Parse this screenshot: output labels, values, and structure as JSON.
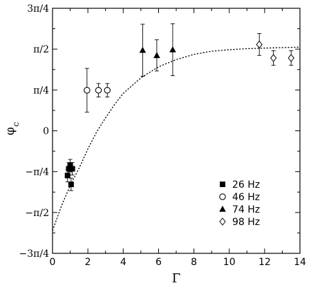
{
  "chart_data": {
    "type": "scatter",
    "xlabel": "Γ",
    "ylabel_main": "φ",
    "ylabel_sub": "c",
    "xlim": [
      0,
      14
    ],
    "ylim": [
      -2.35619,
      2.35619
    ],
    "x_ticks": [
      {
        "value": 0,
        "label": "0"
      },
      {
        "value": 2,
        "label": "2"
      },
      {
        "value": 4,
        "label": "4"
      },
      {
        "value": 6,
        "label": "6"
      },
      {
        "value": 8,
        "label": "8"
      },
      {
        "value": 10,
        "label": "10"
      },
      {
        "value": 12,
        "label": "12"
      },
      {
        "value": 14,
        "label": "14"
      }
    ],
    "y_ticks": [
      {
        "value": 2.35619,
        "label": "3π/4"
      },
      {
        "value": 1.5708,
        "label": "π/2"
      },
      {
        "value": 0.7854,
        "label": "π/4"
      },
      {
        "value": 0,
        "label": "0"
      },
      {
        "value": -0.7854,
        "label": "−π/4"
      },
      {
        "value": -1.5708,
        "label": "−π/2"
      },
      {
        "value": -2.35619,
        "label": "−3π/4"
      }
    ],
    "grid": false,
    "legend_position": "lower-right",
    "series": [
      {
        "name": "26 Hz",
        "marker": "filled-square",
        "points": [
          {
            "x": 0.85,
            "y": -0.86,
            "yerr": 0.12
          },
          {
            "x": 0.92,
            "y": -0.73,
            "yerr": 0.12
          },
          {
            "x": 1.0,
            "y": -0.67,
            "yerr": 0.12
          },
          {
            "x": 1.05,
            "y": -1.03,
            "yerr": 0.12
          },
          {
            "x": 1.12,
            "y": -0.73,
            "yerr": 0.12
          }
        ]
      },
      {
        "name": "46 Hz",
        "marker": "open-circle",
        "points": [
          {
            "x": 1.95,
            "y": 0.78,
            "yerr": 0.42
          },
          {
            "x": 2.6,
            "y": 0.78,
            "yerr": 0.13
          },
          {
            "x": 3.1,
            "y": 0.78,
            "yerr": 0.13
          }
        ]
      },
      {
        "name": "74 Hz",
        "marker": "filled-triangle",
        "points": [
          {
            "x": 5.1,
            "y": 1.55,
            "yerr": 0.5
          },
          {
            "x": 5.9,
            "y": 1.45,
            "yerr": 0.3
          },
          {
            "x": 6.8,
            "y": 1.56,
            "yerr": 0.5
          }
        ]
      },
      {
        "name": "98 Hz",
        "marker": "open-diamond",
        "points": [
          {
            "x": 11.7,
            "y": 1.66,
            "yerr": 0.21
          },
          {
            "x": 12.5,
            "y": 1.4,
            "yerr": 0.14
          },
          {
            "x": 13.5,
            "y": 1.4,
            "yerr": 0.14
          }
        ]
      }
    ],
    "fit_curve": {
      "style": "dashed",
      "points": [
        {
          "x": 0.0,
          "y": -1.92
        },
        {
          "x": 0.5,
          "y": -1.45
        },
        {
          "x": 1.0,
          "y": -1.05
        },
        {
          "x": 1.5,
          "y": -0.72
        },
        {
          "x": 2.0,
          "y": -0.35
        },
        {
          "x": 2.5,
          "y": -0.02
        },
        {
          "x": 3.0,
          "y": 0.25
        },
        {
          "x": 3.5,
          "y": 0.5
        },
        {
          "x": 4.0,
          "y": 0.72
        },
        {
          "x": 5.0,
          "y": 1.02
        },
        {
          "x": 6.0,
          "y": 1.23
        },
        {
          "x": 7.0,
          "y": 1.37
        },
        {
          "x": 8.0,
          "y": 1.47
        },
        {
          "x": 9.0,
          "y": 1.53
        },
        {
          "x": 10.0,
          "y": 1.56
        },
        {
          "x": 11.0,
          "y": 1.58
        },
        {
          "x": 12.0,
          "y": 1.59
        },
        {
          "x": 13.0,
          "y": 1.6
        },
        {
          "x": 14.0,
          "y": 1.61
        }
      ]
    }
  }
}
